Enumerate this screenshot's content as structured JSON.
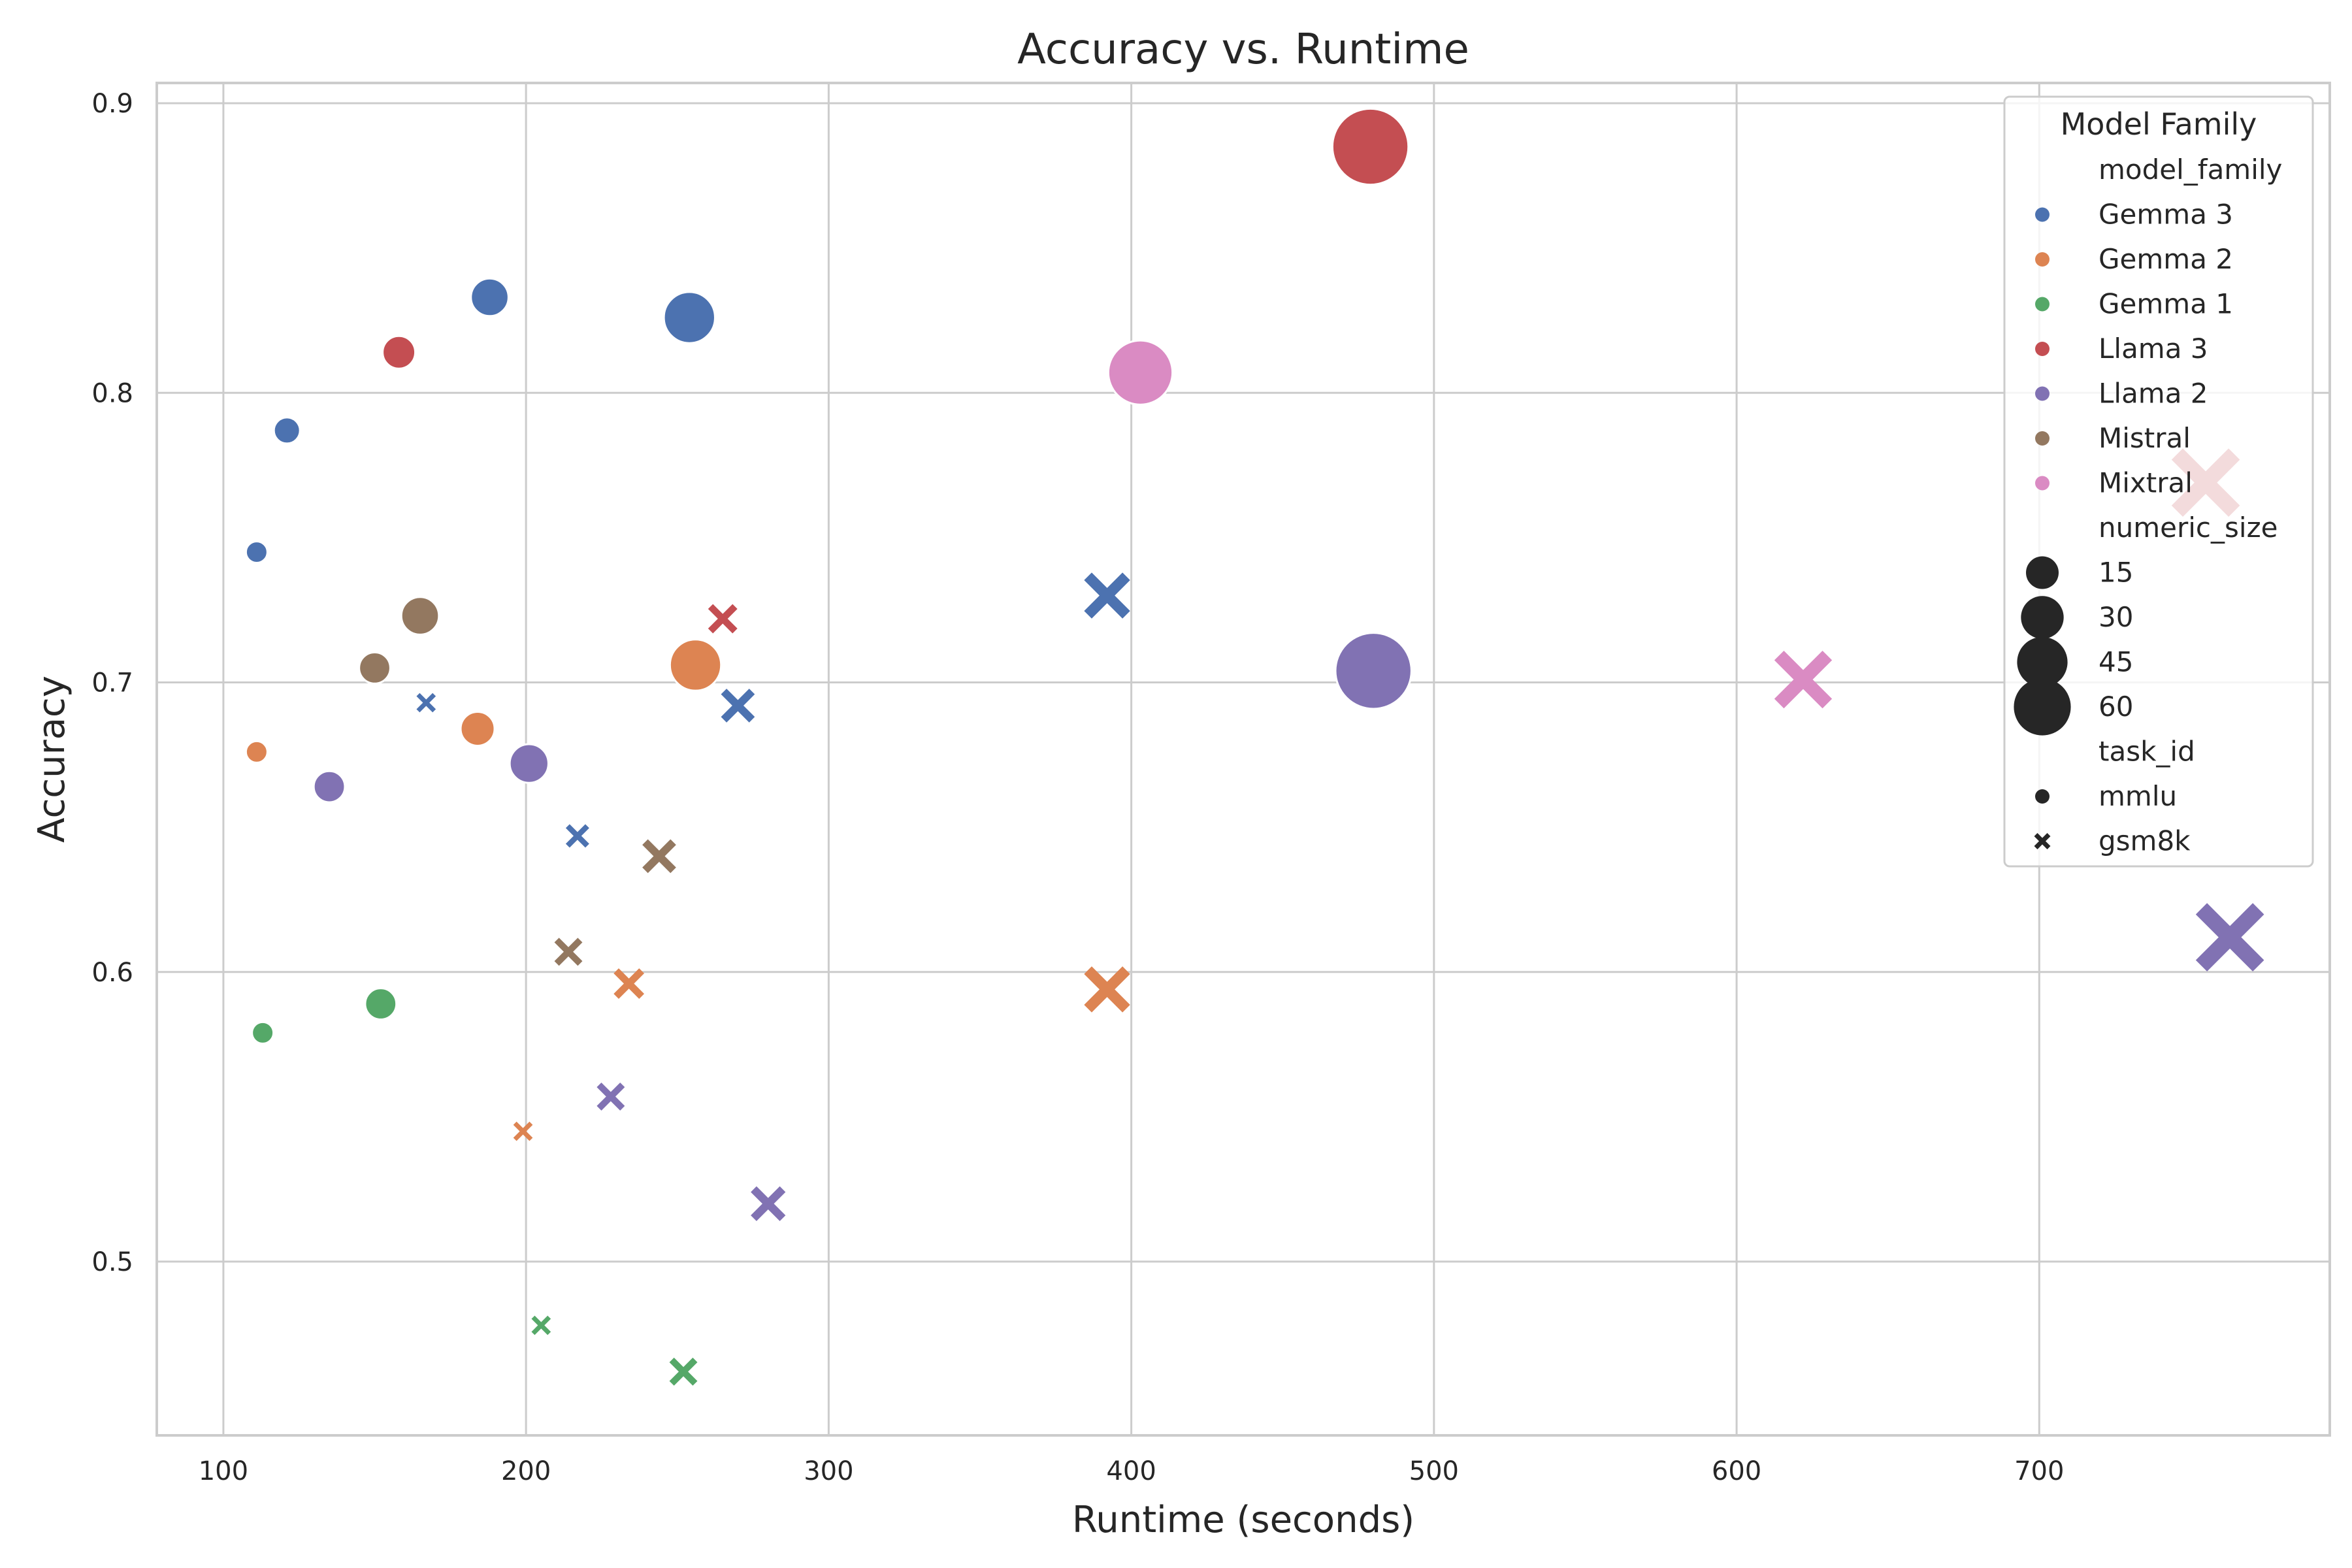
{
  "chart_data": {
    "type": "scatter",
    "title": "Accuracy vs. Runtime",
    "xlabel": "Runtime (seconds)",
    "ylabel": "Accuracy",
    "xlim": [
      78,
      796
    ],
    "ylim": [
      0.44,
      0.907
    ],
    "xticks": [
      100,
      200,
      300,
      400,
      500,
      600,
      700
    ],
    "yticks": [
      0.5,
      0.6,
      0.7,
      0.8,
      0.9
    ],
    "grid": true,
    "legend": {
      "title": "Model Family",
      "placement": "top-right",
      "hue_heading": "model_family",
      "size_heading": "numeric_size",
      "style_heading": "task_id",
      "size_values": [
        15,
        30,
        45,
        60
      ],
      "style_values": [
        "mmlu",
        "gsm8k"
      ]
    },
    "families": [
      {
        "name": "Gemma 3",
        "color": "#4c72b0"
      },
      {
        "name": "Gemma 2",
        "color": "#dd8452"
      },
      {
        "name": "Gemma 1",
        "color": "#55a868"
      },
      {
        "name": "Llama 3",
        "color": "#c44e52"
      },
      {
        "name": "Llama 2",
        "color": "#8172b3"
      },
      {
        "name": "Mistral",
        "color": "#937860"
      },
      {
        "name": "Mixtral",
        "color": "#da8bc3"
      }
    ],
    "points": [
      {
        "family": "Gemma 3",
        "task": "mmlu",
        "size": 2,
        "x": 111,
        "y": 0.745
      },
      {
        "family": "Gemma 3",
        "task": "mmlu",
        "size": 4,
        "x": 121,
        "y": 0.787
      },
      {
        "family": "Gemma 3",
        "task": "mmlu",
        "size": 12,
        "x": 188,
        "y": 0.833
      },
      {
        "family": "Gemma 3",
        "task": "mmlu",
        "size": 27,
        "x": 254,
        "y": 0.826
      },
      {
        "family": "Gemma 3",
        "task": "gsm8k",
        "size": 2,
        "x": 167,
        "y": 0.693
      },
      {
        "family": "Gemma 3",
        "task": "gsm8k",
        "size": 4,
        "x": 217,
        "y": 0.647
      },
      {
        "family": "Gemma 3",
        "task": "gsm8k",
        "size": 12,
        "x": 270,
        "y": 0.692
      },
      {
        "family": "Gemma 3",
        "task": "gsm8k",
        "size": 27,
        "x": 392,
        "y": 0.73
      },
      {
        "family": "Gemma 2",
        "task": "mmlu",
        "size": 2,
        "x": 111,
        "y": 0.676
      },
      {
        "family": "Gemma 2",
        "task": "mmlu",
        "size": 9,
        "x": 184,
        "y": 0.684
      },
      {
        "family": "Gemma 2",
        "task": "mmlu",
        "size": 27,
        "x": 256,
        "y": 0.706
      },
      {
        "family": "Gemma 2",
        "task": "gsm8k",
        "size": 2,
        "x": 199,
        "y": 0.545
      },
      {
        "family": "Gemma 2",
        "task": "gsm8k",
        "size": 9,
        "x": 234,
        "y": 0.596
      },
      {
        "family": "Gemma 2",
        "task": "gsm8k",
        "size": 27,
        "x": 392,
        "y": 0.594
      },
      {
        "family": "Gemma 1",
        "task": "mmlu",
        "size": 2,
        "x": 113,
        "y": 0.579
      },
      {
        "family": "Gemma 1",
        "task": "mmlu",
        "size": 7,
        "x": 152,
        "y": 0.589
      },
      {
        "family": "Gemma 1",
        "task": "gsm8k",
        "size": 2,
        "x": 205,
        "y": 0.478
      },
      {
        "family": "Gemma 1",
        "task": "gsm8k",
        "size": 7,
        "x": 252,
        "y": 0.462
      },
      {
        "family": "Llama 3",
        "task": "mmlu",
        "size": 8,
        "x": 158,
        "y": 0.814
      },
      {
        "family": "Llama 3",
        "task": "mmlu",
        "size": 70,
        "x": 479,
        "y": 0.885
      },
      {
        "family": "Llama 3",
        "task": "gsm8k",
        "size": 8,
        "x": 265,
        "y": 0.722
      },
      {
        "family": "Llama 3",
        "task": "gsm8k",
        "size": 70,
        "x": 755,
        "y": 0.769
      },
      {
        "family": "Llama 2",
        "task": "mmlu",
        "size": 7,
        "x": 135,
        "y": 0.664
      },
      {
        "family": "Llama 2",
        "task": "mmlu",
        "size": 13,
        "x": 201,
        "y": 0.672
      },
      {
        "family": "Llama 2",
        "task": "mmlu",
        "size": 70,
        "x": 480,
        "y": 0.704
      },
      {
        "family": "Llama 2",
        "task": "gsm8k",
        "size": 7,
        "x": 228,
        "y": 0.557
      },
      {
        "family": "Llama 2",
        "task": "gsm8k",
        "size": 13,
        "x": 280,
        "y": 0.52
      },
      {
        "family": "Llama 2",
        "task": "gsm8k",
        "size": 70,
        "x": 763,
        "y": 0.612
      },
      {
        "family": "Mistral",
        "task": "mmlu",
        "size": 7,
        "x": 150,
        "y": 0.705
      },
      {
        "family": "Mistral",
        "task": "mmlu",
        "size": 12,
        "x": 165,
        "y": 0.723
      },
      {
        "family": "Mistral",
        "task": "gsm8k",
        "size": 7,
        "x": 214,
        "y": 0.607
      },
      {
        "family": "Mistral",
        "task": "gsm8k",
        "size": 12,
        "x": 244,
        "y": 0.64
      },
      {
        "family": "Mixtral",
        "task": "mmlu",
        "size": 47,
        "x": 403,
        "y": 0.807
      },
      {
        "family": "Mixtral",
        "task": "gsm8k",
        "size": 47,
        "x": 622,
        "y": 0.701
      }
    ]
  }
}
